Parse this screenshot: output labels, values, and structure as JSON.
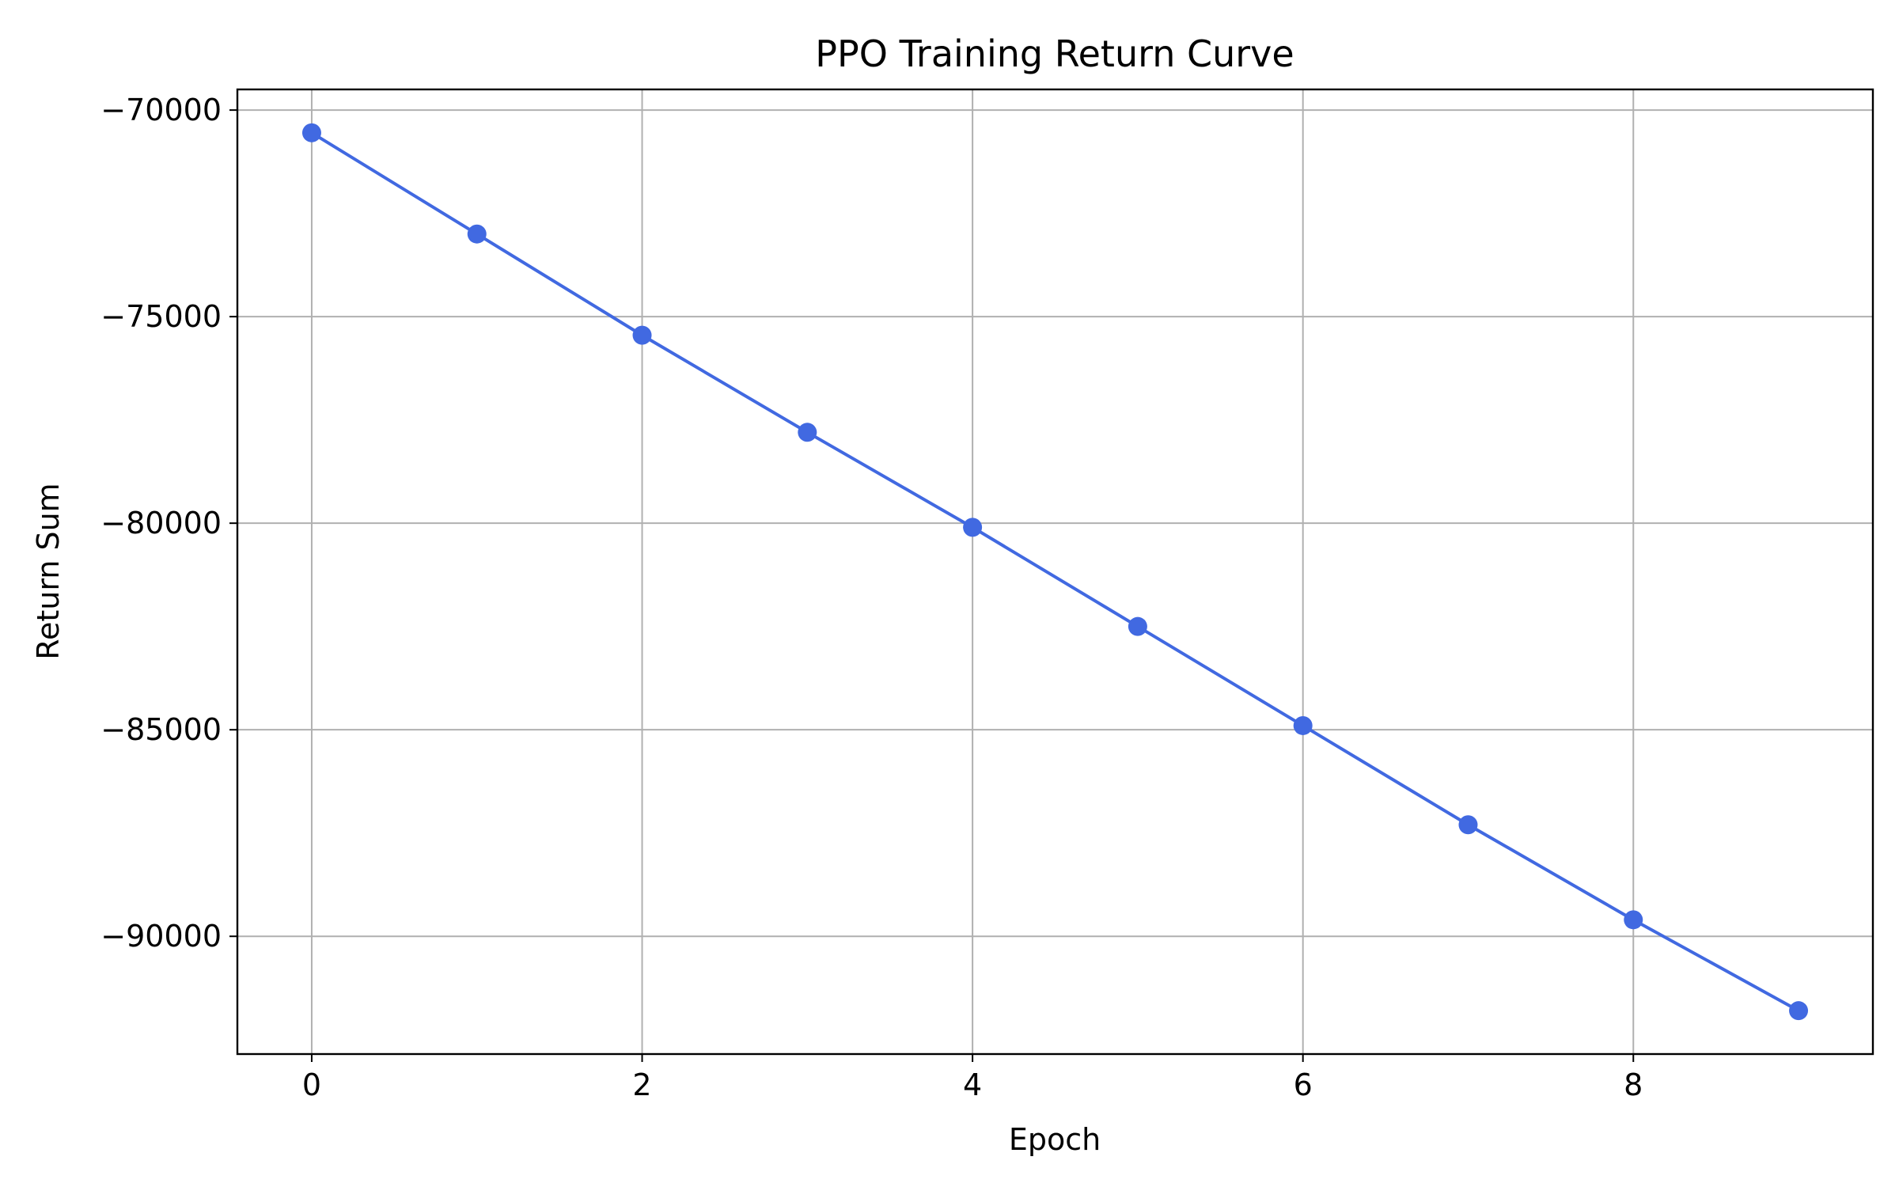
{
  "chart_data": {
    "type": "line",
    "title": "PPO Training Return Curve",
    "xlabel": "Epoch",
    "ylabel": "Return Sum",
    "x": [
      0,
      1,
      2,
      3,
      4,
      5,
      6,
      7,
      8,
      9
    ],
    "series": [
      {
        "values": [
          -70550,
          -73000,
          -75450,
          -77800,
          -80100,
          -82500,
          -84900,
          -87300,
          -89600,
          -91800
        ]
      }
    ],
    "xlim": [
      -0.45,
      9.45
    ],
    "ylim": [
      -92850,
      -69500
    ],
    "xticks": [
      0,
      2,
      4,
      6,
      8
    ],
    "xtick_labels": [
      "0",
      "2",
      "4",
      "6",
      "8"
    ],
    "yticks": [
      -70000,
      -75000,
      -80000,
      -85000,
      -90000
    ],
    "ytick_labels": [
      "−70000",
      "−75000",
      "−80000",
      "−85000",
      "−90000"
    ],
    "grid": true,
    "legend": "none",
    "colors": {
      "line": "#4169e1",
      "marker": "#4169e1",
      "grid": "#b0b0b0",
      "axes": "#000000"
    }
  }
}
